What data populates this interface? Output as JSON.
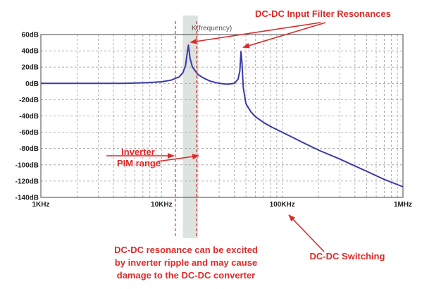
{
  "chart_data": {
    "type": "line",
    "title": "",
    "trace_label": "K(frequency)",
    "xscale": "log",
    "xlim": [
      1000,
      1000000
    ],
    "ylim": [
      -140,
      60
    ],
    "grid": true,
    "x_ticks": [
      "1KHz",
      "10KHz",
      "100KHz",
      "1MHz"
    ],
    "y_ticks": [
      "60dB",
      "40dB",
      "20dB",
      "0dB",
      "-20dB",
      "-40dB",
      "-60dB",
      "-80dB",
      "-100dB",
      "-120dB",
      "-140dB"
    ],
    "series": [
      {
        "x": [
          1000,
          2000,
          5000,
          8000,
          10000,
          12000,
          14000,
          15000,
          15800,
          16200,
          16700,
          17200,
          18000,
          20000,
          22000,
          25000,
          30000,
          35000,
          40000,
          43000,
          44500,
          45500,
          46300,
          47500,
          50000,
          55000,
          60000,
          70000,
          80000,
          100000,
          150000,
          200000,
          300000,
          500000,
          700000,
          1000000
        ],
        "y": [
          0,
          0,
          0,
          1,
          2,
          4,
          8,
          13,
          22,
          34,
          47,
          31,
          20,
          11,
          7,
          3,
          0,
          -1,
          0,
          5,
          15,
          39,
          26,
          -5,
          -25,
          -35,
          -41,
          -48,
          -53,
          -60,
          -73,
          -82,
          -93,
          -108,
          -118,
          -127
        ]
      }
    ],
    "pim_band": [
      15000,
      20000
    ],
    "pim_marker_lines": [
      13000,
      19500
    ],
    "annotations": {
      "resonances": "DC-DC Input Filter Resonances",
      "pim_line1": "Inverter",
      "pim_line2": "PIM range",
      "bottom_line1": "DC-DC resonance can be excited",
      "bottom_line2": "by inverter ripple and may cause",
      "bottom_line3": "damage to the DC-DC converter",
      "switching": "DC-DC Switching"
    },
    "colors": {
      "trace": "#3a3aa8",
      "annotation": "#dd2a2a",
      "band": "#dde3de",
      "grid": "#9e9e9e"
    }
  }
}
